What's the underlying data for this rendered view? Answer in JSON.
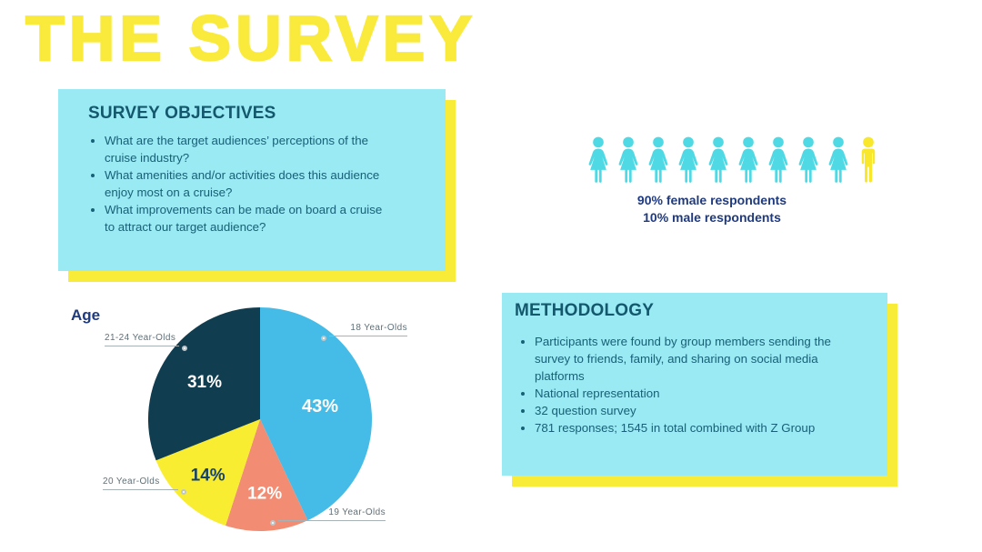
{
  "title": "THE SURVEY",
  "objectives": {
    "heading": "SURVEY OBJECTIVES",
    "bullets": [
      "What are the target audiences’ perceptions of the cruise industry?",
      "What amenities and/or activities does this audience enjoy most on a cruise?",
      "What improvements can be made on board a cruise to attract our target audience?"
    ]
  },
  "respondents": {
    "female_count": 9,
    "male_count": 1,
    "female_label": "90% female respondents",
    "male_label": "10% male respondents"
  },
  "methodology": {
    "heading": "METHODOLOGY",
    "bullets": [
      "Participants were found by group members sending the survey to friends, family, and sharing on social media platforms",
      "National representation",
      "32 question survey",
      "781 responses; 1545 in total combined with Z Group"
    ]
  },
  "chart_data": {
    "type": "pie",
    "title": "Age",
    "labels": [
      "18 Year-Olds",
      "19 Year-Olds",
      "20 Year-Olds",
      "21-24 Year-Olds"
    ],
    "values": [
      43,
      12,
      14,
      31
    ],
    "colors": [
      "#45BCE8",
      "#F28C72",
      "#F9ED32",
      "#113D51"
    ],
    "value_label_colors": [
      "#FFFFFF",
      "#FFFFFF",
      "#16436B",
      "#FFFFFF"
    ],
    "start_angle_deg": 0,
    "direction": "clockwise",
    "legend_position": "callout-labels"
  },
  "colors": {
    "background": "#FFFFFF",
    "title_yellow": "#F9EA3B",
    "box_cyan": "#9AEAF4",
    "shadow_yellow": "#F8EC39",
    "heading_teal": "#14586D",
    "body_teal": "#186077",
    "navy": "#1F3A7D",
    "icon_female": "#4ED9E4",
    "icon_male": "#F8E72B",
    "leader_text": "#5F7078"
  }
}
